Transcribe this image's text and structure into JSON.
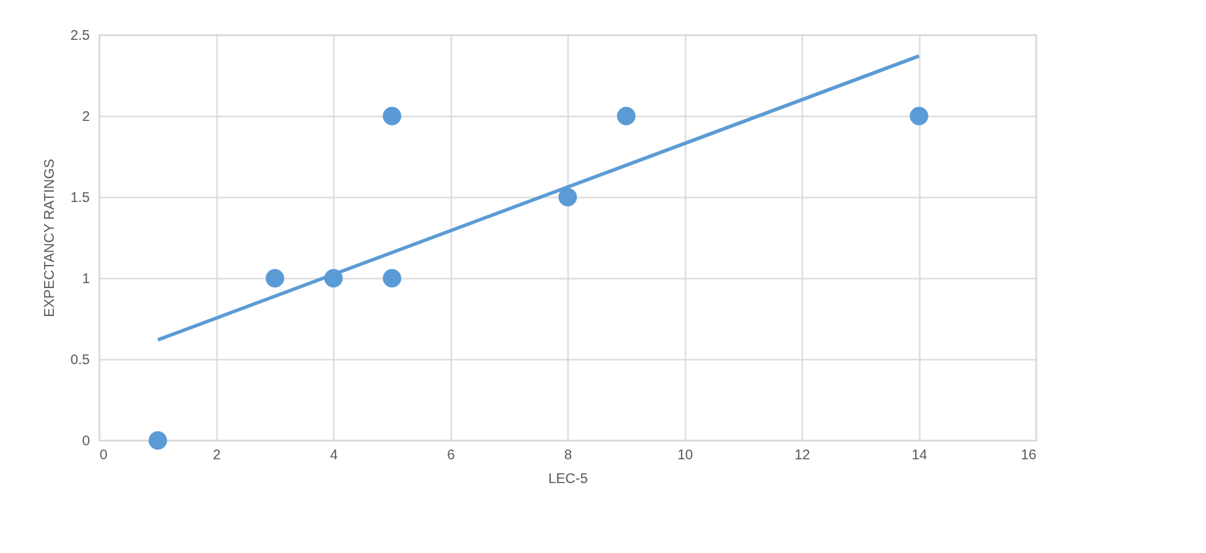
{
  "chart_data": {
    "type": "scatter",
    "xlabel": "LEC-5",
    "ylabel": "EXPECTANCY RATINGS",
    "xlim": [
      0,
      16
    ],
    "xticks": [
      0,
      2,
      4,
      6,
      8,
      10,
      12,
      14,
      16
    ],
    "ylim": [
      0,
      2.5
    ],
    "yticks": [
      0,
      0.5,
      1,
      1.5,
      2,
      2.5
    ],
    "grid": true,
    "marker": "circle",
    "series": [
      {
        "color": "#5b9bd5",
        "x": [
          1,
          3,
          4,
          5,
          5,
          8,
          9,
          14
        ],
        "values": [
          0,
          1,
          1,
          2,
          1,
          1.5,
          2,
          2
        ]
      },
      {
        "type": "line",
        "color": "#5b9bd5",
        "x": [
          1,
          14
        ],
        "values": [
          0.62,
          2.37
        ],
        "marker": "none",
        "line_style": "solid"
      }
    ]
  }
}
